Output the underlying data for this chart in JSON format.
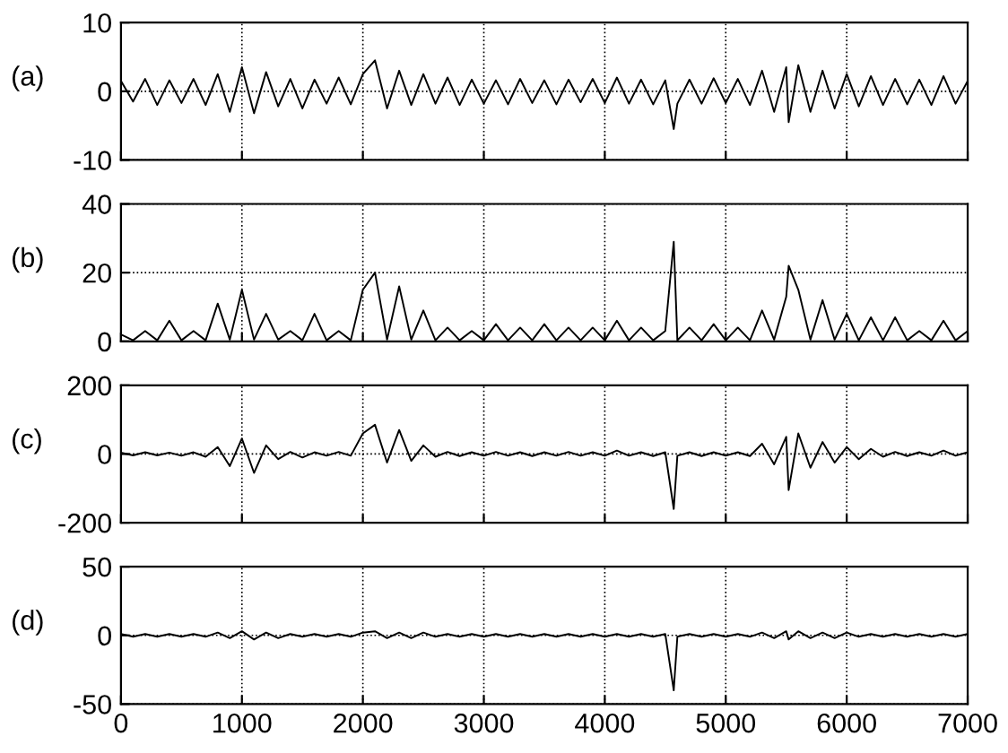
{
  "chart_data": [
    {
      "type": "line",
      "ylabel": "(a)",
      "x": [
        0,
        100,
        200,
        300,
        400,
        500,
        600,
        700,
        800,
        900,
        1000,
        1100,
        1200,
        1300,
        1400,
        1500,
        1600,
        1700,
        1800,
        1900,
        2000,
        2100,
        2200,
        2300,
        2400,
        2500,
        2600,
        2700,
        2800,
        2900,
        3000,
        3100,
        3200,
        3300,
        3400,
        3500,
        3600,
        3700,
        3800,
        3900,
        4000,
        4100,
        4200,
        4300,
        4400,
        4500,
        4570,
        4600,
        4700,
        4800,
        4900,
        5000,
        5100,
        5200,
        5300,
        5400,
        5500,
        5520,
        5600,
        5700,
        5800,
        5900,
        6000,
        6100,
        6200,
        6300,
        6400,
        6500,
        6600,
        6700,
        6800,
        6900,
        7000
      ],
      "series": [
        {
          "color": "#000000",
          "values": [
            1.5,
            -1.5,
            1.8,
            -2,
            1.6,
            -1.7,
            1.8,
            -2,
            2.5,
            -3,
            3.5,
            -3.2,
            2.8,
            -2.2,
            1.8,
            -2.5,
            1.7,
            -1.8,
            2,
            -1.9,
            2.5,
            4.5,
            -2.5,
            3,
            -2,
            2.5,
            -1.8,
            2,
            -2,
            1.7,
            -1.8,
            1.6,
            -1.9,
            1.8,
            -1.7,
            1.6,
            -1.9,
            1.7,
            -1.6,
            1.8,
            -1.7,
            2,
            -1.8,
            1.7,
            -1.9,
            1.6,
            -5.5,
            -1.8,
            1.7,
            -1.8,
            1.9,
            -1.7,
            1.8,
            -2,
            3,
            -3,
            3.5,
            -4.5,
            3.8,
            -3,
            3,
            -2.5,
            2.5,
            -2.2,
            2.2,
            -2,
            1.8,
            -1.9,
            1.7,
            -2,
            2.2,
            -1.8,
            1.5
          ]
        }
      ],
      "xlim": [
        0,
        7000
      ],
      "xticks": [
        0,
        1000,
        2000,
        3000,
        4000,
        5000,
        6000,
        7000
      ],
      "ylim": [
        -10,
        10
      ],
      "yticks": [
        -10,
        0,
        10
      ],
      "grid": true,
      "tick_labels": "y"
    },
    {
      "type": "line",
      "ylabel": "(b)",
      "x": [
        0,
        100,
        200,
        300,
        400,
        500,
        600,
        700,
        800,
        900,
        1000,
        1100,
        1200,
        1300,
        1400,
        1500,
        1600,
        1700,
        1800,
        1900,
        2000,
        2100,
        2200,
        2300,
        2400,
        2500,
        2600,
        2700,
        2800,
        2900,
        3000,
        3100,
        3200,
        3300,
        3400,
        3500,
        3600,
        3700,
        3800,
        3900,
        4000,
        4100,
        4200,
        4300,
        4400,
        4500,
        4570,
        4600,
        4700,
        4800,
        4900,
        5000,
        5100,
        5200,
        5300,
        5400,
        5500,
        5520,
        5600,
        5700,
        5800,
        5900,
        6000,
        6100,
        6200,
        6300,
        6400,
        6500,
        6600,
        6700,
        6800,
        6900,
        7000
      ],
      "series": [
        {
          "color": "#000000",
          "values": [
            2,
            0.3,
            3,
            0.3,
            6,
            0.3,
            3,
            0.3,
            11,
            0.5,
            15,
            0.5,
            8,
            0.5,
            3,
            0.3,
            8,
            0.3,
            3,
            0.3,
            15,
            20,
            0.5,
            16,
            0.5,
            9,
            0.3,
            4,
            0.3,
            3,
            0.3,
            5,
            0.3,
            4,
            0.3,
            5,
            0.3,
            4,
            0.3,
            4,
            0.3,
            6,
            0.3,
            4,
            0.3,
            3,
            29,
            0.3,
            4,
            0.3,
            5,
            0.3,
            4,
            0.3,
            9,
            0.5,
            13,
            22,
            15,
            0.5,
            12,
            0.5,
            8,
            0.3,
            7,
            0.3,
            7,
            0.3,
            3,
            0.3,
            6,
            0.3,
            3
          ]
        }
      ],
      "xlim": [
        0,
        7000
      ],
      "xticks": [
        0,
        1000,
        2000,
        3000,
        4000,
        5000,
        6000,
        7000
      ],
      "ylim": [
        0,
        40
      ],
      "yticks": [
        0,
        20,
        40
      ],
      "grid": true,
      "tick_labels": "y"
    },
    {
      "type": "line",
      "ylabel": "(c)",
      "x": [
        0,
        100,
        200,
        300,
        400,
        500,
        600,
        700,
        800,
        900,
        1000,
        1100,
        1200,
        1300,
        1400,
        1500,
        1600,
        1700,
        1800,
        1900,
        2000,
        2100,
        2200,
        2300,
        2400,
        2500,
        2600,
        2700,
        2800,
        2900,
        3000,
        3100,
        3200,
        3300,
        3400,
        3500,
        3600,
        3700,
        3800,
        3900,
        4000,
        4100,
        4200,
        4300,
        4400,
        4500,
        4570,
        4600,
        4700,
        4800,
        4900,
        5000,
        5100,
        5200,
        5300,
        5400,
        5500,
        5520,
        5600,
        5700,
        5800,
        5900,
        6000,
        6100,
        6200,
        6300,
        6400,
        6500,
        6600,
        6700,
        6800,
        6900,
        7000
      ],
      "series": [
        {
          "color": "#000000",
          "values": [
            4,
            -4,
            5,
            -4,
            4,
            -5,
            5,
            -8,
            20,
            -35,
            45,
            -55,
            25,
            -15,
            6,
            -10,
            5,
            -5,
            6,
            -5,
            60,
            85,
            -25,
            70,
            -20,
            25,
            -8,
            6,
            -6,
            5,
            -5,
            6,
            -5,
            5,
            -6,
            5,
            -5,
            6,
            -5,
            5,
            -5,
            10,
            -5,
            5,
            -6,
            5,
            -160,
            -5,
            5,
            -6,
            5,
            -5,
            5,
            -6,
            30,
            -30,
            50,
            -105,
            60,
            -40,
            35,
            -25,
            20,
            -15,
            15,
            -8,
            6,
            -6,
            5,
            -5,
            10,
            -5,
            5
          ]
        }
      ],
      "xlim": [
        0,
        7000
      ],
      "xticks": [
        0,
        1000,
        2000,
        3000,
        4000,
        5000,
        6000,
        7000
      ],
      "ylim": [
        -200,
        200
      ],
      "yticks": [
        -200,
        0,
        200
      ],
      "grid": true,
      "tick_labels": "y"
    },
    {
      "type": "line",
      "ylabel": "(d)",
      "x": [
        0,
        100,
        200,
        300,
        400,
        500,
        600,
        700,
        800,
        900,
        1000,
        1100,
        1200,
        1300,
        1400,
        1500,
        1600,
        1700,
        1800,
        1900,
        2000,
        2100,
        2200,
        2300,
        2400,
        2500,
        2600,
        2700,
        2800,
        2900,
        3000,
        3100,
        3200,
        3300,
        3400,
        3500,
        3600,
        3700,
        3800,
        3900,
        4000,
        4100,
        4200,
        4300,
        4400,
        4500,
        4570,
        4600,
        4700,
        4800,
        4900,
        5000,
        5100,
        5200,
        5300,
        5400,
        5500,
        5520,
        5600,
        5700,
        5800,
        5900,
        6000,
        6100,
        6200,
        6300,
        6400,
        6500,
        6600,
        6700,
        6800,
        6900,
        7000
      ],
      "series": [
        {
          "color": "#000000",
          "values": [
            1,
            -1,
            1,
            -1,
            1,
            -1,
            1,
            -1,
            2,
            -2,
            3,
            -3,
            2,
            -2,
            1,
            -1,
            1,
            -1,
            1,
            -1,
            2,
            3,
            -2,
            2,
            -2,
            2,
            -1,
            1,
            -1,
            1,
            -1,
            1,
            -1,
            1,
            -1,
            1,
            -1,
            1,
            -1,
            1,
            -1,
            1,
            -1,
            1,
            -1,
            1,
            -40,
            -1,
            1,
            -1,
            1,
            -1,
            1,
            -1,
            2,
            -2,
            3,
            -3,
            3,
            -2,
            2,
            -2,
            2,
            -1,
            1,
            -1,
            1,
            -1,
            1,
            -1,
            1,
            -1,
            1
          ]
        }
      ],
      "xlim": [
        0,
        7000
      ],
      "xticks": [
        0,
        1000,
        2000,
        3000,
        4000,
        5000,
        6000,
        7000
      ],
      "ylim": [
        -50,
        50
      ],
      "yticks": [
        -50,
        0,
        50
      ],
      "grid": true
    }
  ]
}
